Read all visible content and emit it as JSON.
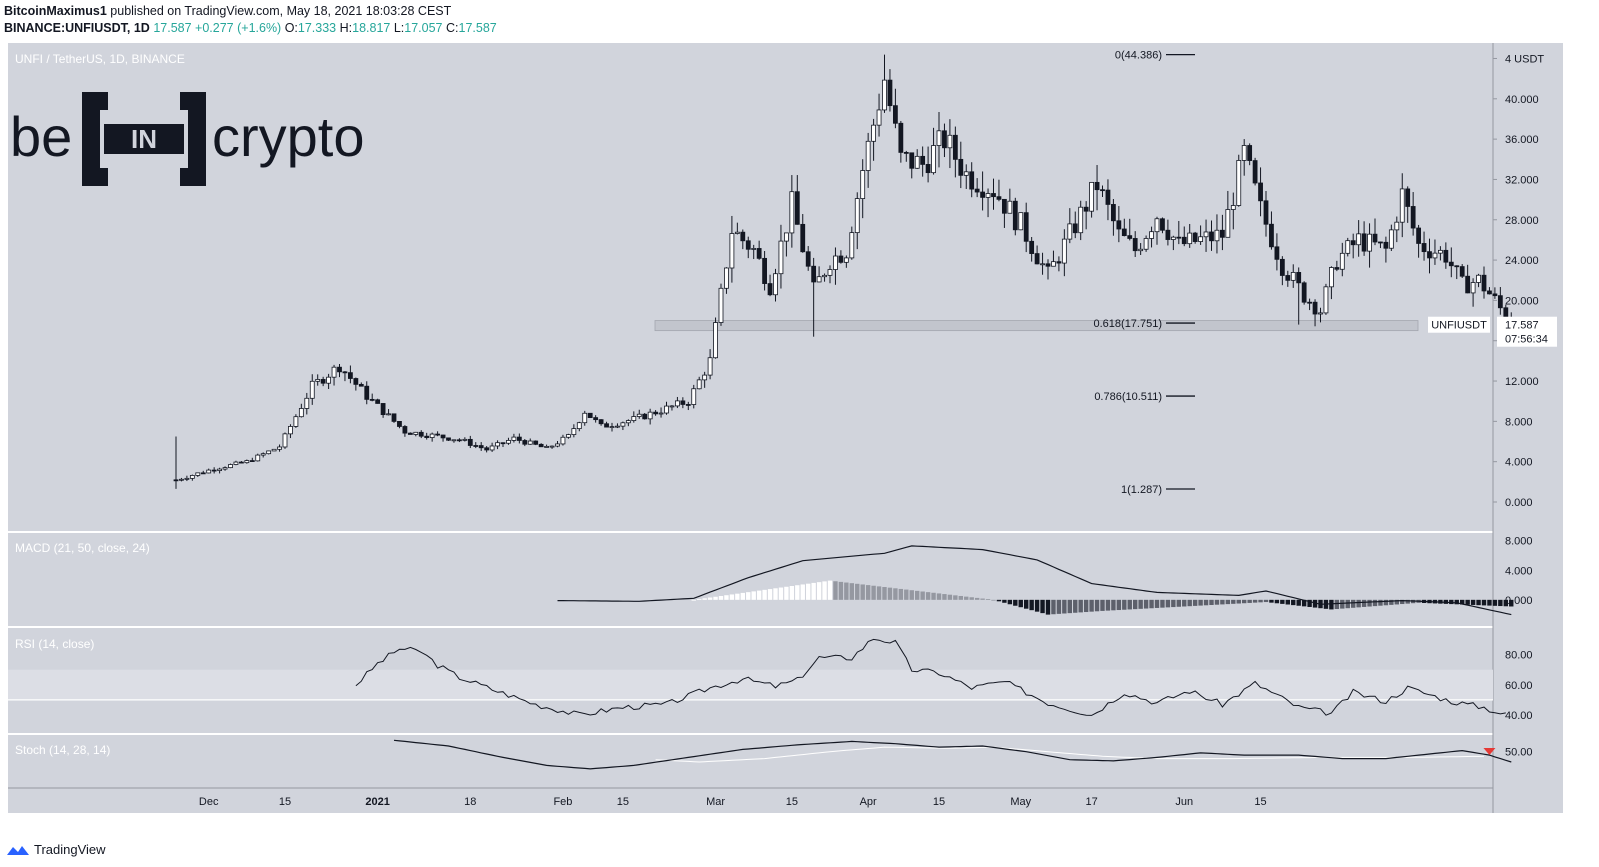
{
  "header": {
    "author": "BitcoinMaximus1",
    "published_text": "published on TradingView.com, May 18, 2021 18:03:28 CEST",
    "symbol": "BINANCE:UNFIUSDT, 1D",
    "last": "17.587",
    "change": "+0.277 (+1.6%)",
    "open_label": "O:",
    "open": "17.333",
    "high_label": "H:",
    "high": "18.817",
    "low_label": "L:",
    "low": "17.057",
    "close_label": "C:",
    "close": "17.587"
  },
  "panes": {
    "main_title": "UNFI / TetherUS, 1D, BINANCE",
    "macd_title": "MACD (21, 50, close, 24)",
    "rsi_title": "RSI (14, close)",
    "stoch_title": "Stoch (14, 28, 14)"
  },
  "logo": {
    "text_left": "be",
    "text_mid": "IN",
    "text_right": "crypto"
  },
  "price_tag": {
    "symbol": "UNFIUSDT",
    "price": "17.587",
    "countdown": "07:56:34"
  },
  "footer": {
    "brand": "TradingView"
  },
  "colors": {
    "pane_bg": "#d1d4dc",
    "band": "#dcdee5",
    "ink": "#131722",
    "up": "#ffffff",
    "down": "#131722",
    "signal_red": "#e53935"
  },
  "chart_data": {
    "type": "candlestick",
    "title": "UNFI / TetherUS, 1D, BINANCE",
    "x_ticks": [
      "Dec",
      "15",
      "2021",
      "18",
      "Feb",
      "15",
      "Mar",
      "15",
      "Apr",
      "15",
      "May",
      "17",
      "Jun",
      "15"
    ],
    "y_ticks": [
      "4 USDT",
      "40.000",
      "36.000",
      "32.000",
      "28.000",
      "24.000",
      "20.000",
      "16.000",
      "12.000",
      "8.000",
      "4.000",
      "0.000"
    ],
    "ylim": [
      -1.5,
      45
    ],
    "support_zone": [
      17.0,
      18.0
    ],
    "fib_levels": [
      {
        "label": "0(44.386)",
        "value": 44.386
      },
      {
        "label": "0.618(17.751)",
        "value": 17.751
      },
      {
        "label": "0.786(10.511)",
        "value": 10.511
      },
      {
        "label": "1(1.287)",
        "value": 1.287
      }
    ],
    "anchors": [
      {
        "day": 0,
        "price": 2.2
      },
      {
        "day": 7,
        "price": 3.3
      },
      {
        "day": 13,
        "price": 4.0
      },
      {
        "day": 19,
        "price": 5.5
      },
      {
        "day": 25,
        "price": 11.5
      },
      {
        "day": 30,
        "price": 13.5
      },
      {
        "day": 35,
        "price": 10.5
      },
      {
        "day": 42,
        "price": 7.0
      },
      {
        "day": 52,
        "price": 6.2
      },
      {
        "day": 57,
        "price": 5.2
      },
      {
        "day": 62,
        "price": 6.3
      },
      {
        "day": 68,
        "price": 5.3
      },
      {
        "day": 72,
        "price": 6.5
      },
      {
        "day": 75,
        "price": 9.0
      },
      {
        "day": 78,
        "price": 7.5
      },
      {
        "day": 84,
        "price": 8.2
      },
      {
        "day": 94,
        "price": 10.0
      },
      {
        "day": 98,
        "price": 14.0
      },
      {
        "day": 102,
        "price": 27.0
      },
      {
        "day": 106,
        "price": 25.0
      },
      {
        "day": 109,
        "price": 21.5
      },
      {
        "day": 113,
        "price": 29.5
      },
      {
        "day": 117,
        "price": 21.0
      },
      {
        "day": 120,
        "price": 24.0
      },
      {
        "day": 123,
        "price": 25.0
      },
      {
        "day": 126,
        "price": 33.0
      },
      {
        "day": 130,
        "price": 42.0
      },
      {
        "day": 133,
        "price": 34.0
      },
      {
        "day": 137,
        "price": 33.5
      },
      {
        "day": 141,
        "price": 36.0
      },
      {
        "day": 145,
        "price": 32.5
      },
      {
        "day": 150,
        "price": 31.0
      },
      {
        "day": 155,
        "price": 27.5
      },
      {
        "day": 160,
        "price": 22.5
      },
      {
        "day": 164,
        "price": 26.5
      },
      {
        "day": 169,
        "price": 31.5
      },
      {
        "day": 173,
        "price": 26.5
      },
      {
        "day": 176,
        "price": 25.0
      },
      {
        "day": 180,
        "price": 28.5
      },
      {
        "day": 184,
        "price": 25.5
      },
      {
        "day": 188,
        "price": 26.0
      },
      {
        "day": 192,
        "price": 26.5
      },
      {
        "day": 196,
        "price": 34.5
      },
      {
        "day": 199,
        "price": 29.0
      },
      {
        "day": 203,
        "price": 23.5
      },
      {
        "day": 207,
        "price": 20.5
      },
      {
        "day": 210,
        "price": 19.0
      },
      {
        "day": 213,
        "price": 24.0
      },
      {
        "day": 217,
        "price": 26.0
      },
      {
        "day": 222,
        "price": 25.0
      },
      {
        "day": 225,
        "price": 30.5
      },
      {
        "day": 228,
        "price": 25.5
      },
      {
        "day": 233,
        "price": 24.5
      },
      {
        "day": 236,
        "price": 21.5
      },
      {
        "day": 239,
        "price": 22.0
      },
      {
        "day": 242,
        "price": 20.0
      },
      {
        "day": 245,
        "price": 17.587
      }
    ],
    "macd": {
      "ylim": [
        -3,
        8.5
      ],
      "y_ticks": [
        "8.000",
        "4.000",
        "0.000"
      ],
      "macd_line": [
        {
          "day": 70,
          "value": -0.1
        },
        {
          "day": 85,
          "value": -0.2
        },
        {
          "day": 95,
          "value": 0.2
        },
        {
          "day": 105,
          "value": 3.0
        },
        {
          "day": 115,
          "value": 5.3
        },
        {
          "day": 130,
          "value": 6.3
        },
        {
          "day": 135,
          "value": 7.3
        },
        {
          "day": 148,
          "value": 6.8
        },
        {
          "day": 158,
          "value": 5.4
        },
        {
          "day": 168,
          "value": 2.2
        },
        {
          "day": 180,
          "value": 1.0
        },
        {
          "day": 195,
          "value": 0.6
        },
        {
          "day": 200,
          "value": 1.2
        },
        {
          "day": 210,
          "value": -0.6
        },
        {
          "day": 225,
          "value": -0.1
        },
        {
          "day": 235,
          "value": -0.4
        },
        {
          "day": 245,
          "value": -2.0
        }
      ]
    },
    "rsi": {
      "ylim": [
        30,
        95
      ],
      "y_ticks": [
        "80.00",
        "60.00",
        "40.00"
      ],
      "band": [
        50,
        70
      ],
      "line": [
        {
          "day": 33,
          "value": 60
        },
        {
          "day": 37,
          "value": 74
        },
        {
          "day": 41,
          "value": 84
        },
        {
          "day": 45,
          "value": 82
        },
        {
          "day": 48,
          "value": 73
        },
        {
          "day": 52,
          "value": 65
        },
        {
          "day": 58,
          "value": 57
        },
        {
          "day": 66,
          "value": 47
        },
        {
          "day": 74,
          "value": 40
        },
        {
          "day": 82,
          "value": 45
        },
        {
          "day": 90,
          "value": 47
        },
        {
          "day": 98,
          "value": 58
        },
        {
          "day": 104,
          "value": 64
        },
        {
          "day": 110,
          "value": 59
        },
        {
          "day": 114,
          "value": 63
        },
        {
          "day": 118,
          "value": 78
        },
        {
          "day": 124,
          "value": 78
        },
        {
          "day": 128,
          "value": 91
        },
        {
          "day": 132,
          "value": 88
        },
        {
          "day": 135,
          "value": 70
        },
        {
          "day": 140,
          "value": 68
        },
        {
          "day": 146,
          "value": 58
        },
        {
          "day": 152,
          "value": 62
        },
        {
          "day": 160,
          "value": 48
        },
        {
          "day": 168,
          "value": 40
        },
        {
          "day": 174,
          "value": 55
        },
        {
          "day": 180,
          "value": 48
        },
        {
          "day": 186,
          "value": 56
        },
        {
          "day": 192,
          "value": 47
        },
        {
          "day": 198,
          "value": 61
        },
        {
          "day": 206,
          "value": 45
        },
        {
          "day": 212,
          "value": 41
        },
        {
          "day": 216,
          "value": 55
        },
        {
          "day": 222,
          "value": 49
        },
        {
          "day": 226,
          "value": 58
        },
        {
          "day": 234,
          "value": 49
        },
        {
          "day": 240,
          "value": 45
        },
        {
          "day": 244,
          "value": 40
        }
      ]
    },
    "stoch": {
      "ylim": [
        20,
        62
      ],
      "y_ticks": [
        "50.00"
      ],
      "k_line": [
        {
          "day": 40,
          "value": 60
        },
        {
          "day": 50,
          "value": 55
        },
        {
          "day": 60,
          "value": 45
        },
        {
          "day": 68,
          "value": 38
        },
        {
          "day": 76,
          "value": 35
        },
        {
          "day": 84,
          "value": 38
        },
        {
          "day": 94,
          "value": 45
        },
        {
          "day": 104,
          "value": 52
        },
        {
          "day": 114,
          "value": 56
        },
        {
          "day": 124,
          "value": 59
        },
        {
          "day": 132,
          "value": 57
        },
        {
          "day": 140,
          "value": 54
        },
        {
          "day": 148,
          "value": 55
        },
        {
          "day": 156,
          "value": 50
        },
        {
          "day": 164,
          "value": 43
        },
        {
          "day": 172,
          "value": 42
        },
        {
          "day": 180,
          "value": 45
        },
        {
          "day": 188,
          "value": 49
        },
        {
          "day": 196,
          "value": 47
        },
        {
          "day": 206,
          "value": 47
        },
        {
          "day": 214,
          "value": 44
        },
        {
          "day": 222,
          "value": 44
        },
        {
          "day": 230,
          "value": 48
        },
        {
          "day": 236,
          "value": 51
        },
        {
          "day": 241,
          "value": 47
        },
        {
          "day": 245,
          "value": 41
        }
      ],
      "d_line": [
        {
          "day": 88,
          "value": 43
        },
        {
          "day": 96,
          "value": 41
        },
        {
          "day": 108,
          "value": 44
        },
        {
          "day": 120,
          "value": 50
        },
        {
          "day": 130,
          "value": 54
        },
        {
          "day": 142,
          "value": 53
        },
        {
          "day": 150,
          "value": 54
        },
        {
          "day": 160,
          "value": 50
        },
        {
          "day": 170,
          "value": 46
        },
        {
          "day": 180,
          "value": 44
        },
        {
          "day": 194,
          "value": 44
        },
        {
          "day": 210,
          "value": 45
        },
        {
          "day": 226,
          "value": 45
        },
        {
          "day": 240,
          "value": 46
        }
      ],
      "signal_day": 241
    }
  }
}
